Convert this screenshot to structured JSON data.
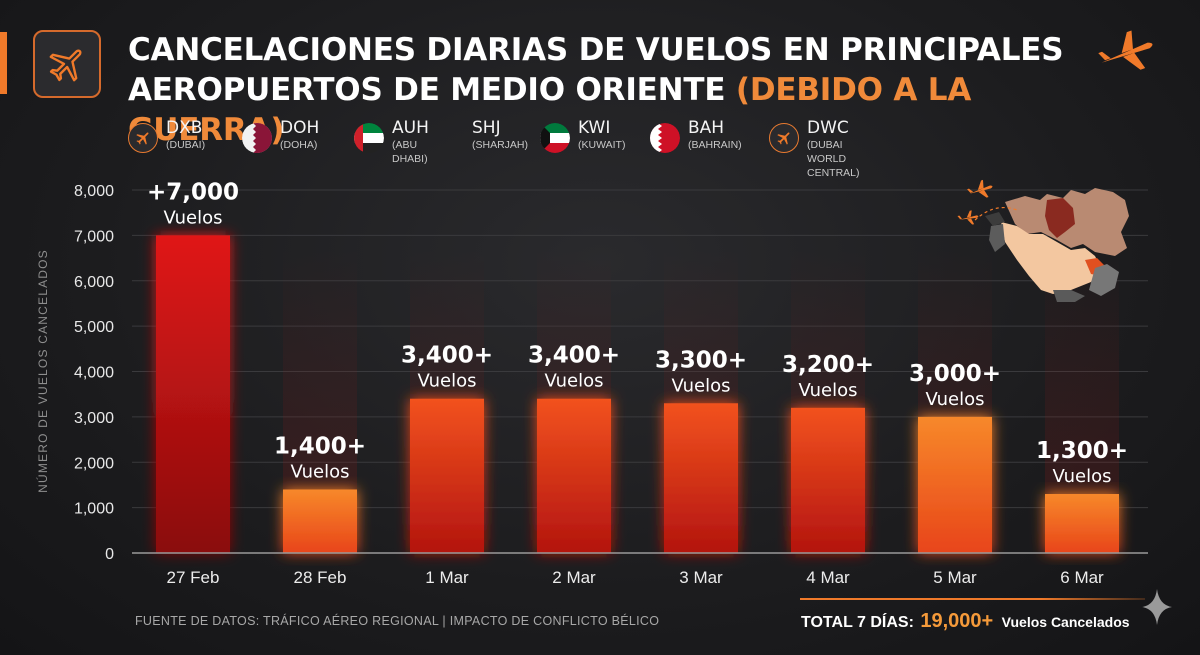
{
  "header": {
    "title_main": "CANCELACIONES DIARIAS DE VUELOS EN PRINCIPALES AEROPUERTOS DE MEDIO ORIENTE",
    "title_highlight": "(DEBIDO A LA GUERRA)"
  },
  "airports": [
    {
      "code": "DXB",
      "name": "(DUBAI)",
      "icon": "plane-icon"
    },
    {
      "code": "DOH",
      "name": "(DOHA)",
      "icon": "qatar-flag-icon"
    },
    {
      "code": "AUH",
      "name": "(ABU DHABI)",
      "icon": "uae-flag-icon"
    },
    {
      "code": "SHJ",
      "name": "(SHARJAH)",
      "icon": ""
    },
    {
      "code": "KWI",
      "name": "(KUWAIT)",
      "icon": "kuwait-flag-icon"
    },
    {
      "code": "BAH",
      "name": "(BAHRAIN)",
      "icon": "bahrain-flag-icon"
    },
    {
      "code": "DWC",
      "name": "(DUBAI WORLD CENTRAL)",
      "icon": "plane-icon"
    }
  ],
  "chart_data": {
    "type": "bar",
    "categories": [
      "27 Feb",
      "28 Feb",
      "1 Mar",
      "2 Mar",
      "3 Mar",
      "4 Mar",
      "5 Mar",
      "6 Mar"
    ],
    "values": [
      7000,
      1400,
      3400,
      3400,
      3300,
      3200,
      3000,
      1300
    ],
    "data_labels": [
      "+7,000",
      "1,400+",
      "3,400+",
      "3,400+",
      "3,300+",
      "3,200+",
      "3,000+",
      "1,300+"
    ],
    "data_label_unit": "Vuelos",
    "ylabel": "NÚMERO DE VUELOS CANCELADOS",
    "ylim": [
      0,
      8000
    ],
    "yticks": [
      0,
      1000,
      2000,
      3000,
      4000,
      5000,
      6000,
      7000,
      8000
    ],
    "ytick_labels": [
      "0",
      "1,000",
      "2,000",
      "3,000",
      "4,000",
      "5,000",
      "6,000",
      "7,000",
      "8,000"
    ],
    "grid": true,
    "colors": {
      "bar_dark": "#b00f0f",
      "bar_mid": "#e8401a",
      "bar_light": "#f07a22",
      "accent": "#f08a3a"
    }
  },
  "footer": {
    "source": "FUENTE DE DATOS: TRÁFICO AÉREO REGIONAL | IMPACTO DE CONFLICTO BÉLICO",
    "total_label": "TOTAL 7 DÍAS:",
    "total_value": "19,000+",
    "total_unit": "Vuelos Cancelados"
  }
}
